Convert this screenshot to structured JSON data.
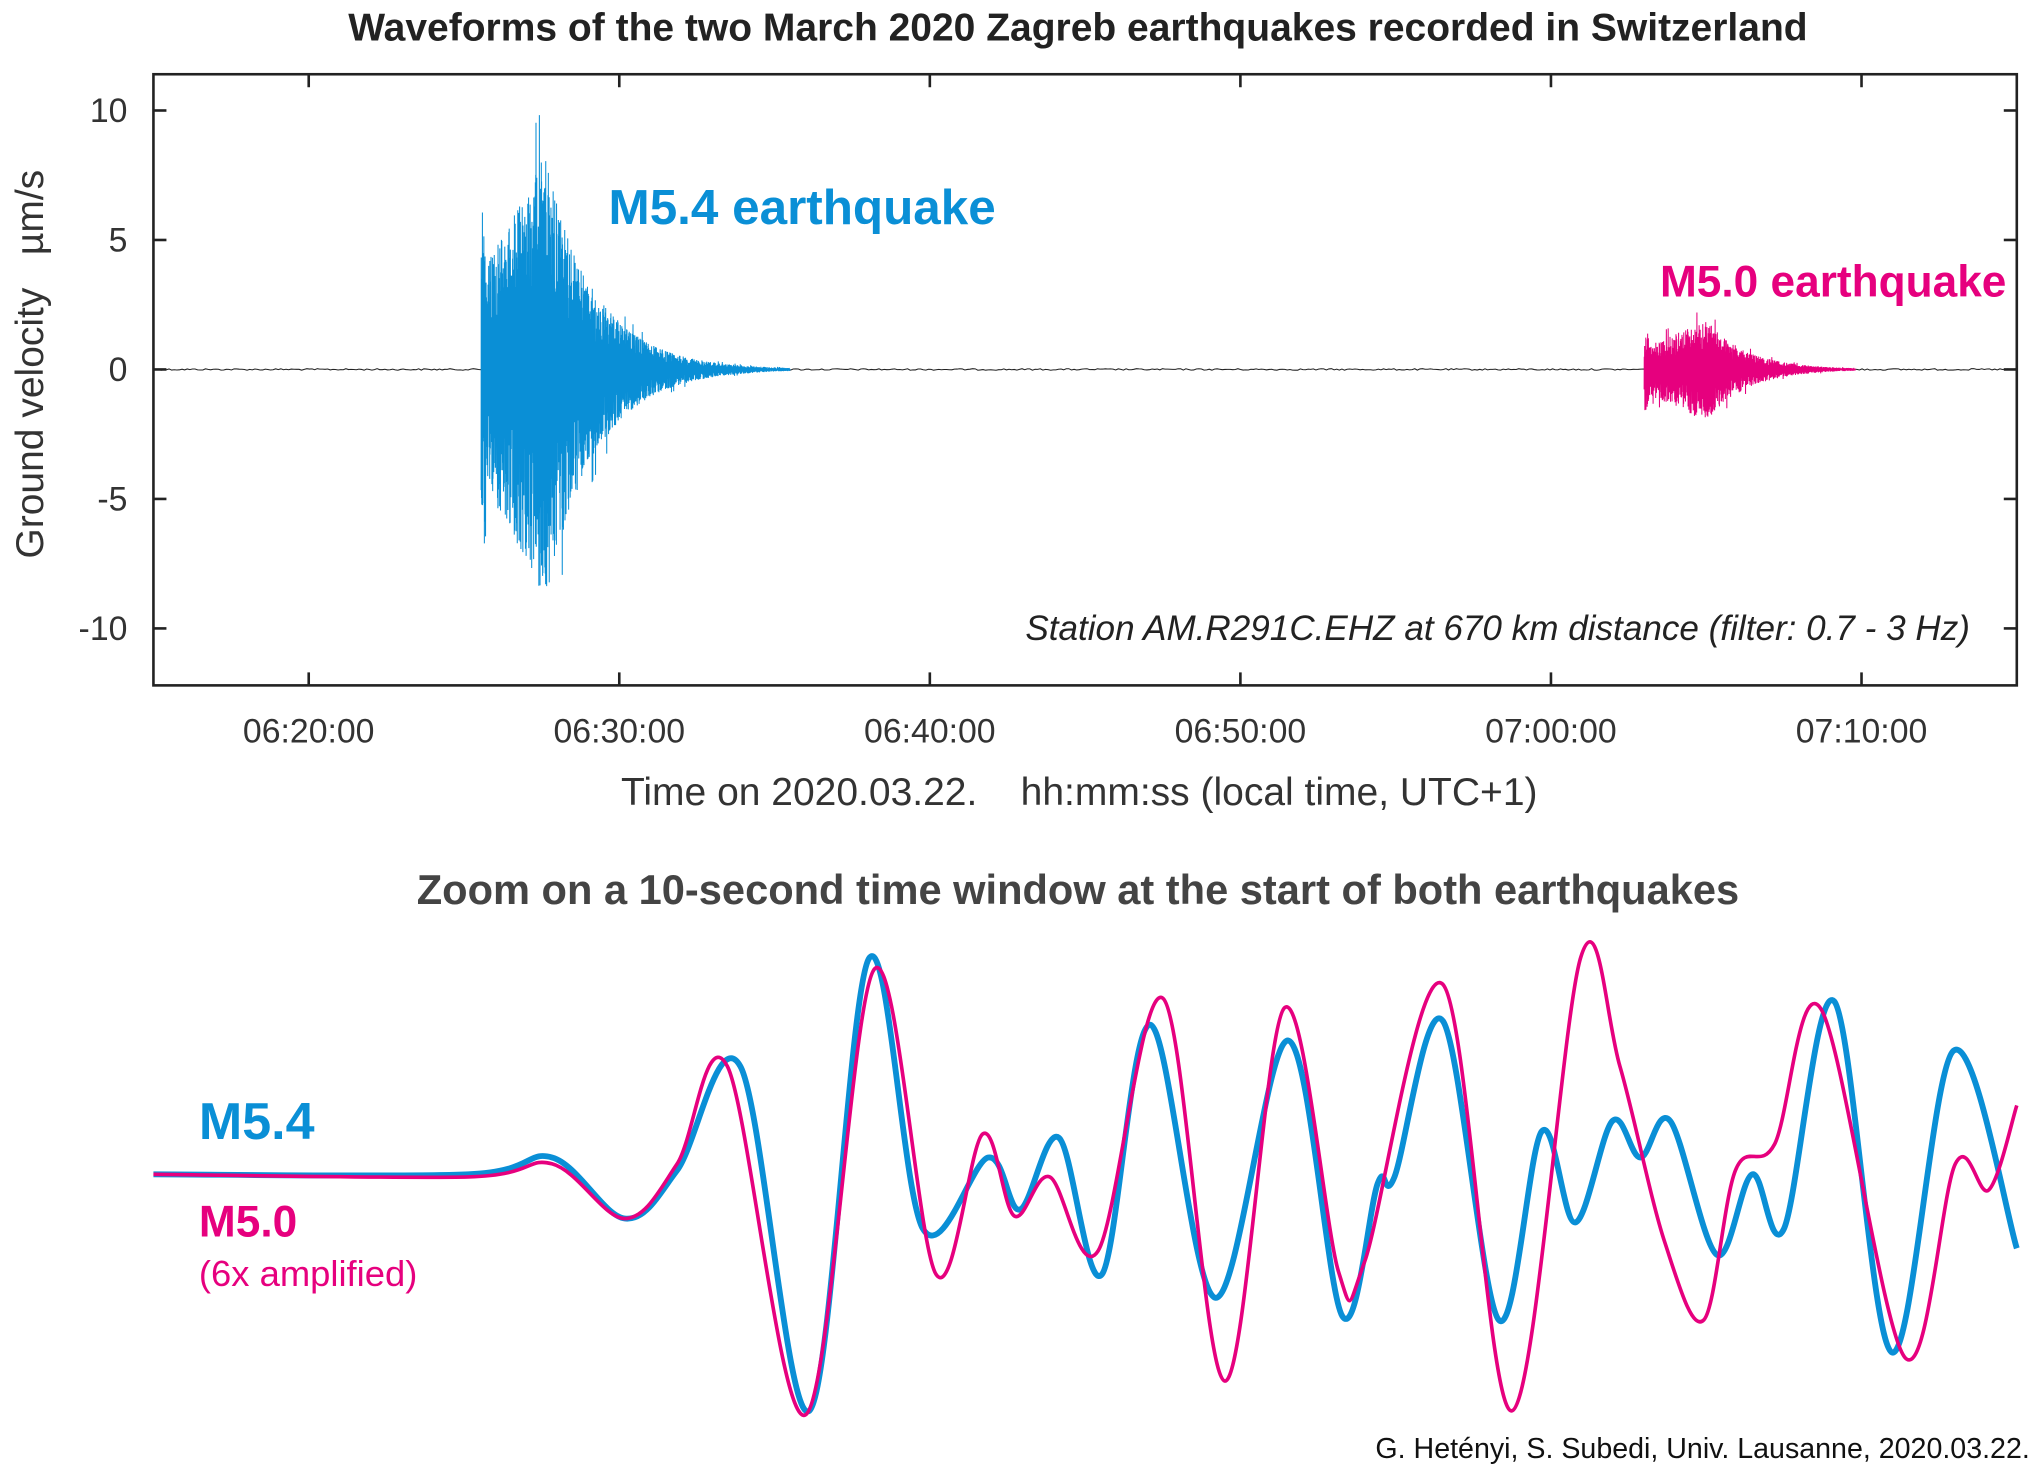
{
  "title": "Waveforms of the two March 2020 Zagreb earthquakes recorded in Switzerland",
  "station_note": "Station AM.R291C.EHZ at 670 km distance (filter: 0.7 - 3 Hz)",
  "credit": "G. Hetényi, S. Subedi, Univ. Lausanne, 2020.03.22.",
  "colors": {
    "m54": "#0a8fd6",
    "m50": "#e6007e",
    "axis": "#222222"
  },
  "chart_data": [
    {
      "type": "line",
      "title": "Waveforms of the two March 2020 Zagreb earthquakes recorded in Switzerland",
      "ylabel": "Ground velocity   µm/s",
      "xlabel": "Time on 2020.03.22.    hh:mm:ss (local time, UTC+1)",
      "x_units": "minutes after 06:00:00",
      "xlim": [
        15,
        75
      ],
      "ylim": [
        -12.2,
        11.4
      ],
      "grid": false,
      "yticks": [
        -10,
        -5,
        0,
        5,
        10
      ],
      "xticks": [
        20,
        30,
        40,
        50,
        60,
        70
      ],
      "xtick_labels": [
        "06:20:00",
        "06:30:00",
        "06:40:00",
        "06:50:00",
        "07:00:00",
        "07:10:00"
      ],
      "series": [
        {
          "name": "M5.4 earthquake",
          "label": "M5.4 earthquake",
          "color": "#0a8fd6",
          "onset": 25.55,
          "peak_time": 27.6,
          "max": 10.3,
          "min": -11.3,
          "end": 35.5,
          "decay": 1.6
        },
        {
          "name": "M5.0 earthquake",
          "label": "M5.0 earthquake",
          "color": "#e6007e",
          "onset": 63.0,
          "peak_time": 65.0,
          "max": 2.4,
          "min": -2.5,
          "end": 69.8,
          "decay": 1.3
        }
      ]
    },
    {
      "type": "line",
      "title": "Zoom on a 10-second time window at the start of both earthquakes",
      "x_units": "seconds",
      "xlim": [
        0,
        10
      ],
      "axes_visible": false,
      "series": [
        {
          "name": "M5.4",
          "label": "M5.4",
          "color": "#0a8fd6",
          "x": [
            0,
            1.69,
            2.14,
            2.53,
            2.81,
            3.15,
            3.52,
            3.84,
            4.13,
            4.48,
            4.65,
            4.86,
            5.09,
            5.35,
            5.7,
            6.09,
            6.38,
            6.57,
            6.66,
            6.92,
            7.22,
            7.45,
            7.63,
            7.83,
            7.98,
            8.14,
            8.39,
            8.58,
            8.75,
            9.02,
            9.33,
            9.66,
            10.0
          ],
          "y": [
            0,
            0,
            0.78,
            -2.05,
            0.18,
            5.0,
            -10.96,
            10.0,
            -2.53,
            0.78,
            -1.63,
            1.69,
            -4.64,
            6.93,
            -5.72,
            6.2,
            -6.57,
            -0.42,
            -0.12,
            7.11,
            -6.75,
            1.99,
            -2.23,
            2.47,
            0.78,
            2.47,
            -3.73,
            0,
            -2.53,
            8.01,
            -8.25,
            5.72,
            -3.43
          ]
        },
        {
          "name": "M5.0",
          "label": "M5.0",
          "note": "(6x amplified)",
          "color": "#e6007e",
          "x": [
            0,
            1.69,
            2.14,
            2.53,
            2.81,
            3.08,
            3.5,
            3.87,
            4.2,
            4.45,
            4.62,
            4.81,
            5.07,
            5.42,
            5.75,
            6.07,
            6.36,
            6.5,
            6.92,
            7.29,
            7.66,
            7.87,
            8.11,
            8.32,
            8.49,
            8.7,
            8.95,
            9.4,
            9.67,
            9.85,
            10.0
          ],
          "y": [
            0,
            -0.12,
            0.48,
            -2.05,
            0.48,
            5.0,
            -11.14,
            9.52,
            -4.64,
            1.87,
            -1.93,
            -0.12,
            -3.55,
            8.13,
            -9.58,
            7.71,
            -4.52,
            -4.04,
            8.8,
            -10.96,
            10.06,
            5.0,
            -3.13,
            -6.75,
            0.18,
            1.39,
            7.65,
            -8.49,
            0.48,
            -0.72,
            3.19
          ]
        }
      ]
    }
  ]
}
